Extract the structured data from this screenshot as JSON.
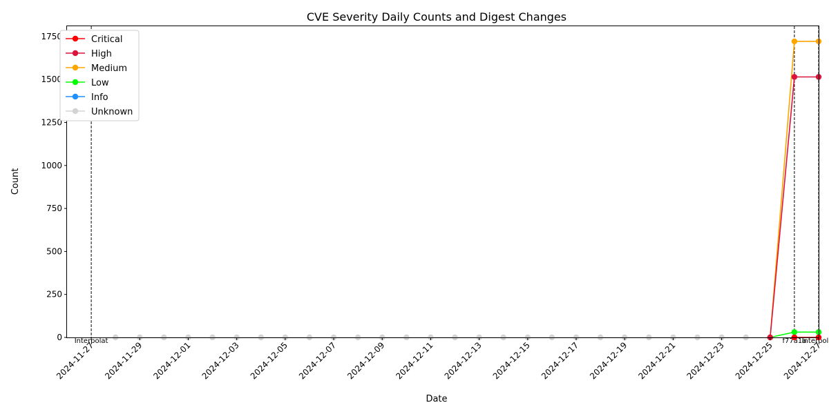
{
  "chart_data": {
    "type": "line",
    "title": "CVE Severity Daily Counts and Digest Changes",
    "xlabel": "Date",
    "ylabel": "Count",
    "x_range": [
      "2024-11-26",
      "2024-12-27"
    ],
    "ylim": [
      0,
      1810
    ],
    "yticks": [
      0,
      250,
      500,
      750,
      1000,
      1250,
      1500,
      1750
    ],
    "xticks": [
      "2024-11-27",
      "2024-11-29",
      "2024-12-01",
      "2024-12-03",
      "2024-12-05",
      "2024-12-07",
      "2024-12-09",
      "2024-12-11",
      "2024-12-13",
      "2024-12-15",
      "2024-12-17",
      "2024-12-19",
      "2024-12-21",
      "2024-12-23",
      "2024-12-25",
      "2024-12-27"
    ],
    "grid": false,
    "legend": "upper-left",
    "series": [
      {
        "name": "Critical",
        "color": "#ff0000",
        "x": [
          "2024-12-26",
          "2024-12-27"
        ],
        "y": [
          0,
          0
        ]
      },
      {
        "name": "High",
        "color": "#dc143c",
        "x": [
          "2024-12-25",
          "2024-12-26",
          "2024-12-27"
        ],
        "y": [
          0,
          1515,
          1515
        ]
      },
      {
        "name": "Medium",
        "color": "#ffa500",
        "x": [
          "2024-12-25",
          "2024-12-26",
          "2024-12-27"
        ],
        "y": [
          0,
          1722,
          1722
        ]
      },
      {
        "name": "Low",
        "color": "#00ff00",
        "x": [
          "2024-12-25",
          "2024-12-26",
          "2024-12-27"
        ],
        "y": [
          0,
          31,
          31
        ]
      },
      {
        "name": "Info",
        "color": "#1e90ff",
        "x": [
          "2024-12-26",
          "2024-12-27"
        ],
        "y": [
          0,
          0
        ]
      },
      {
        "name": "Unknown",
        "color": "#d3d3d3",
        "x": [
          "2024-11-28",
          "2024-11-29",
          "2024-11-30",
          "2024-12-01",
          "2024-12-02",
          "2024-12-03",
          "2024-12-04",
          "2024-12-05",
          "2024-12-06",
          "2024-12-07",
          "2024-12-08",
          "2024-12-09",
          "2024-12-10",
          "2024-12-11",
          "2024-12-12",
          "2024-12-13",
          "2024-12-14",
          "2024-12-15",
          "2024-12-16",
          "2024-12-17",
          "2024-12-18",
          "2024-12-19",
          "2024-12-20",
          "2024-12-21",
          "2024-12-22",
          "2024-12-23",
          "2024-12-24",
          "2024-12-25"
        ],
        "y": [
          0,
          0,
          0,
          0,
          0,
          0,
          0,
          0,
          0,
          0,
          0,
          0,
          0,
          0,
          0,
          0,
          0,
          0,
          0,
          0,
          0,
          0,
          0,
          0,
          0,
          0,
          0,
          0
        ]
      }
    ],
    "digest_changes": [
      {
        "date": "2024-11-27",
        "label": "Interpolat"
      },
      {
        "date": "2024-12-26",
        "label": "f77a1a"
      },
      {
        "date": "2024-12-27",
        "label": "Interpolat"
      }
    ]
  }
}
